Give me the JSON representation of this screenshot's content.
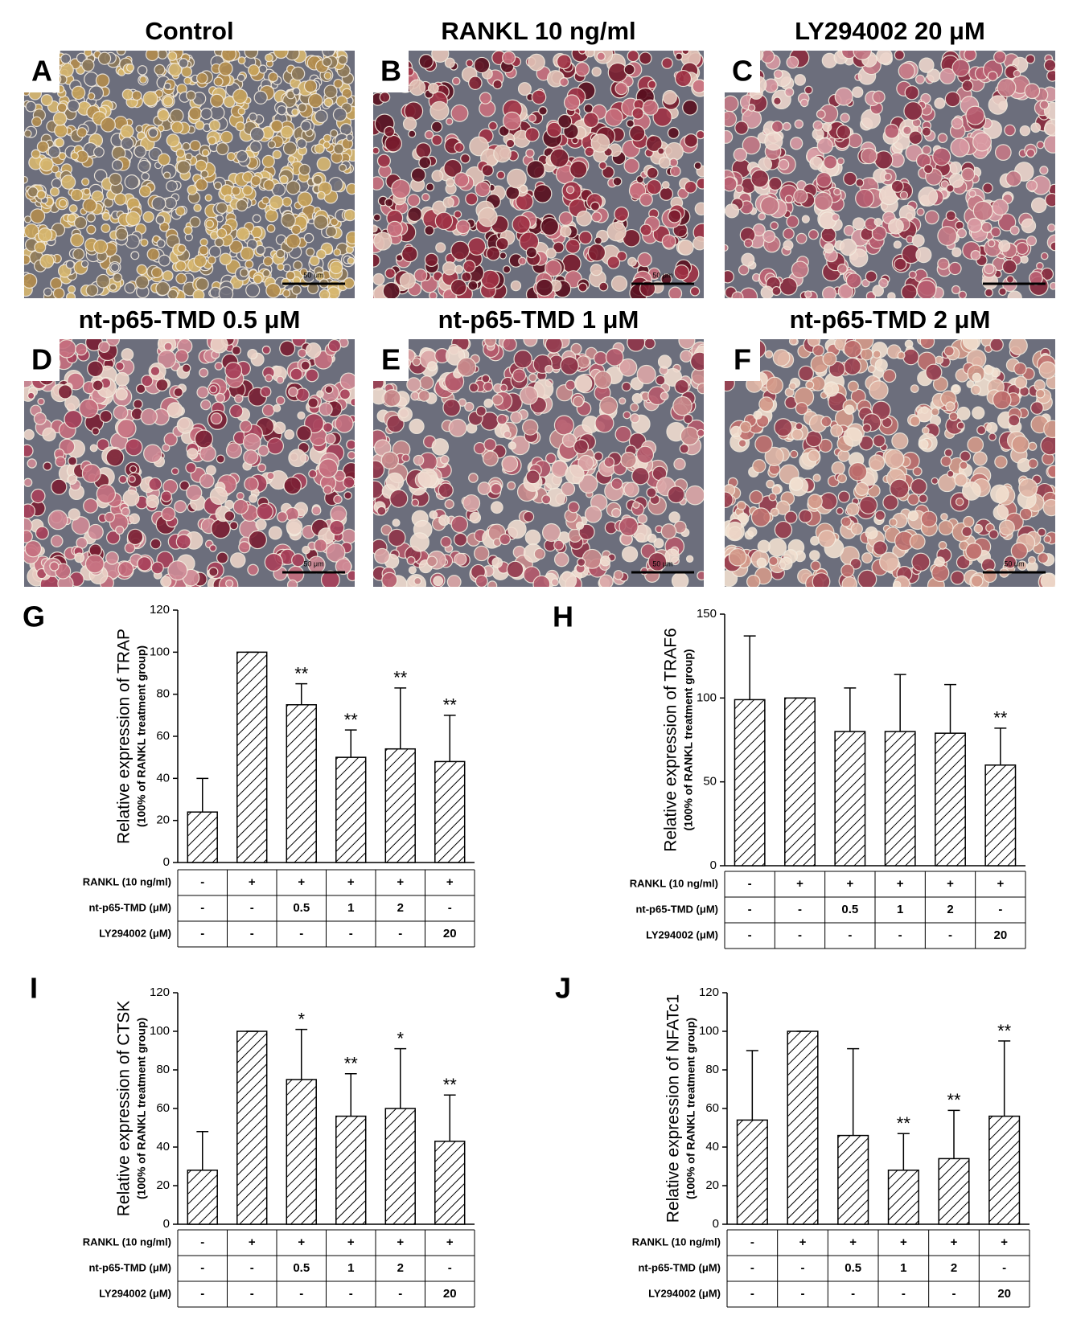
{
  "images": [
    {
      "letter": "A",
      "title": "Control",
      "scale_bar": "50 μm"
    },
    {
      "letter": "B",
      "title": "RANKL 10 ng/ml",
      "scale_bar": "50 μm"
    },
    {
      "letter": "C",
      "title": "LY294002 20 μM"
    },
    {
      "letter": "D",
      "title": "nt-p65-TMD 0.5 μM",
      "scale_bar": "50 μm"
    },
    {
      "letter": "E",
      "title": "nt-p65-TMD 1 μM",
      "scale_bar": "50 μm"
    },
    {
      "letter": "F",
      "title": "nt-p65-TMD 2 μM",
      "scale_bar": "50 μm"
    }
  ],
  "chart_data": [
    {
      "type": "bar",
      "panel": "G",
      "y_label": "Relative expression of TRAP",
      "y_sublabel": "(100% of RANKL treatment group)",
      "values": [
        24,
        100,
        75,
        50,
        54,
        48
      ],
      "errors": [
        16,
        0,
        10,
        13,
        29,
        22
      ],
      "annotations": [
        {
          "index": 2,
          "text": "**"
        },
        {
          "index": 3,
          "text": "**"
        },
        {
          "index": 4,
          "text": "**"
        },
        {
          "index": 5,
          "text": "**"
        }
      ],
      "ylim": [
        0,
        120
      ],
      "yticks": [
        0,
        20,
        40,
        60,
        80,
        100,
        120
      ],
      "color": "#000000",
      "table": {
        "rows": [
          {
            "label": "RANKL (10 ng/ml)",
            "cells": [
              "-",
              "+",
              "+",
              "+",
              "+",
              "+"
            ]
          },
          {
            "label": "nt-p65-TMD (μM)",
            "cells": [
              "-",
              "-",
              "0.5",
              "1",
              "2",
              "-"
            ]
          },
          {
            "label": "LY294002 (μM)",
            "cells": [
              "-",
              "-",
              "-",
              "-",
              "-",
              "20"
            ]
          }
        ]
      }
    },
    {
      "type": "bar",
      "panel": "H",
      "y_label": "Relative expression of TRAF6",
      "y_sublabel": "(100% of RANKL treatment group)",
      "values": [
        99,
        100,
        80,
        80,
        79,
        60
      ],
      "errors": [
        38,
        0,
        26,
        34,
        29,
        22
      ],
      "annotations": [
        {
          "index": 5,
          "text": "**"
        }
      ],
      "ylim": [
        0,
        150
      ],
      "yticks": [
        0,
        50,
        100,
        150
      ],
      "color": "#000000",
      "table": {
        "rows": [
          {
            "label": "RANKL (10 ng/ml)",
            "cells": [
              "-",
              "+",
              "+",
              "+",
              "+",
              "+"
            ]
          },
          {
            "label": "nt-p65-TMD (μM)",
            "cells": [
              "-",
              "-",
              "0.5",
              "1",
              "2",
              "-"
            ]
          },
          {
            "label": "LY294002 (μM)",
            "cells": [
              "-",
              "-",
              "-",
              "-",
              "-",
              "20"
            ]
          }
        ]
      }
    },
    {
      "type": "bar",
      "panel": "I",
      "y_label": "Relative expression of CTSK",
      "y_sublabel": "(100% of RANKL treatment group)",
      "values": [
        28,
        100,
        75,
        56,
        60,
        43
      ],
      "errors": [
        20,
        0,
        26,
        22,
        31,
        24
      ],
      "annotations": [
        {
          "index": 2,
          "text": "*"
        },
        {
          "index": 3,
          "text": "**"
        },
        {
          "index": 4,
          "text": "*"
        },
        {
          "index": 5,
          "text": "**"
        }
      ],
      "ylim": [
        0,
        120
      ],
      "yticks": [
        0,
        20,
        40,
        60,
        80,
        100,
        120
      ],
      "color": "#000000",
      "table": {
        "rows": [
          {
            "label": "RANKL (10 ng/ml)",
            "cells": [
              "-",
              "+",
              "+",
              "+",
              "+",
              "+"
            ]
          },
          {
            "label": "nt-p65-TMD (μM)",
            "cells": [
              "-",
              "-",
              "0.5",
              "1",
              "2",
              "-"
            ]
          },
          {
            "label": "LY294002 (μM)",
            "cells": [
              "-",
              "-",
              "-",
              "-",
              "-",
              "20"
            ]
          }
        ]
      }
    },
    {
      "type": "bar",
      "panel": "J",
      "y_label": "Relative expression of NFATc1",
      "y_sublabel": "(100% of RANKL treatment group)",
      "values": [
        54,
        100,
        46,
        28,
        34,
        56
      ],
      "errors": [
        36,
        0,
        45,
        19,
        25,
        39
      ],
      "annotations": [
        {
          "index": 3,
          "text": "**"
        },
        {
          "index": 4,
          "text": "**"
        },
        {
          "index": 5,
          "text": "**"
        }
      ],
      "ylim": [
        0,
        120
      ],
      "yticks": [
        0,
        20,
        40,
        60,
        80,
        100,
        120
      ],
      "color": "#000000",
      "table": {
        "rows": [
          {
            "label": "RANKL (10 ng/ml)",
            "cells": [
              "-",
              "+",
              "+",
              "+",
              "+",
              "+"
            ]
          },
          {
            "label": "nt-p65-TMD (μM)",
            "cells": [
              "-",
              "-",
              "0.5",
              "1",
              "2",
              "-"
            ]
          },
          {
            "label": "LY294002 (μM)",
            "cells": [
              "-",
              "-",
              "-",
              "-",
              "-",
              "20"
            ]
          }
        ]
      }
    }
  ]
}
